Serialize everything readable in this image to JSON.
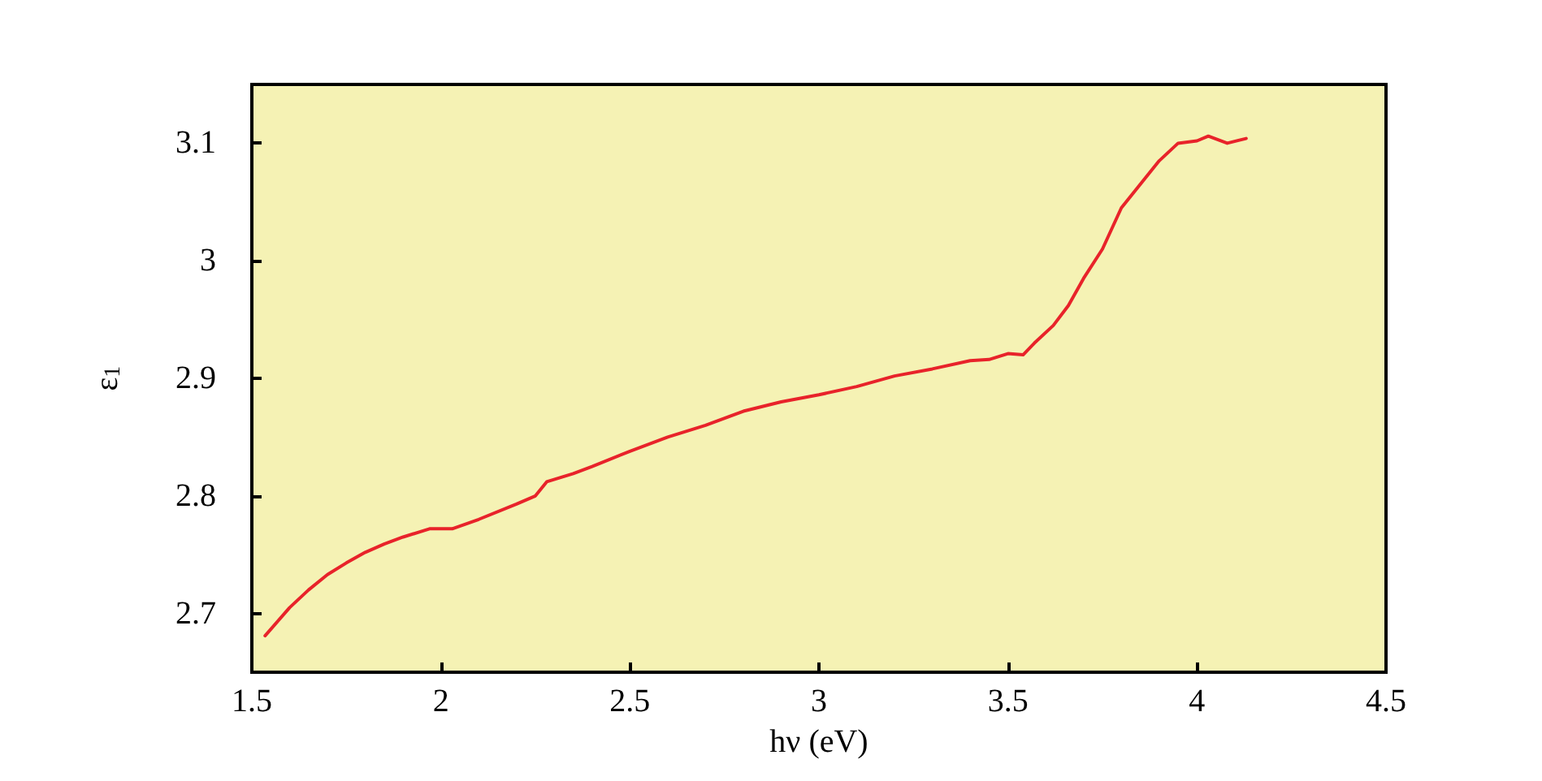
{
  "chart_data": {
    "type": "line",
    "xlabel": "hν (eV)",
    "ylabel": "ε$_{1}$",
    "xlim": [
      1.5,
      4.5
    ],
    "xticks": [
      1.5,
      2,
      2.5,
      3,
      3.5,
      4,
      4.5
    ],
    "ylim": [
      2.65,
      3.15
    ],
    "yticks": [
      2.7,
      2.8,
      2.9,
      3,
      3.1
    ],
    "grid": false,
    "marker": "none",
    "line_style": "solid",
    "series": [
      {
        "color": "#e8232a",
        "x": [
          1.535,
          1.6,
          1.65,
          1.7,
          1.75,
          1.8,
          1.85,
          1.9,
          1.97,
          2.03,
          2.1,
          2.2,
          2.25,
          2.28,
          2.35,
          2.4,
          2.5,
          2.6,
          2.7,
          2.8,
          2.9,
          3.0,
          3.1,
          3.2,
          3.3,
          3.4,
          3.45,
          3.5,
          3.54,
          3.57,
          3.62,
          3.66,
          3.7,
          3.75,
          3.8,
          3.85,
          3.9,
          3.95,
          4.0,
          4.03,
          4.08,
          4.13
        ],
        "values": [
          2.681,
          2.705,
          2.72,
          2.733,
          2.743,
          2.752,
          2.759,
          2.765,
          2.772,
          2.772,
          2.78,
          2.793,
          2.8,
          2.812,
          2.819,
          2.825,
          2.838,
          2.85,
          2.86,
          2.872,
          2.88,
          2.886,
          2.893,
          2.902,
          2.908,
          2.915,
          2.916,
          2.921,
          2.92,
          2.93,
          2.945,
          2.962,
          2.985,
          3.01,
          3.045,
          3.065,
          3.085,
          3.1,
          3.102,
          3.106,
          3.1,
          3.104
        ]
      }
    ]
  }
}
